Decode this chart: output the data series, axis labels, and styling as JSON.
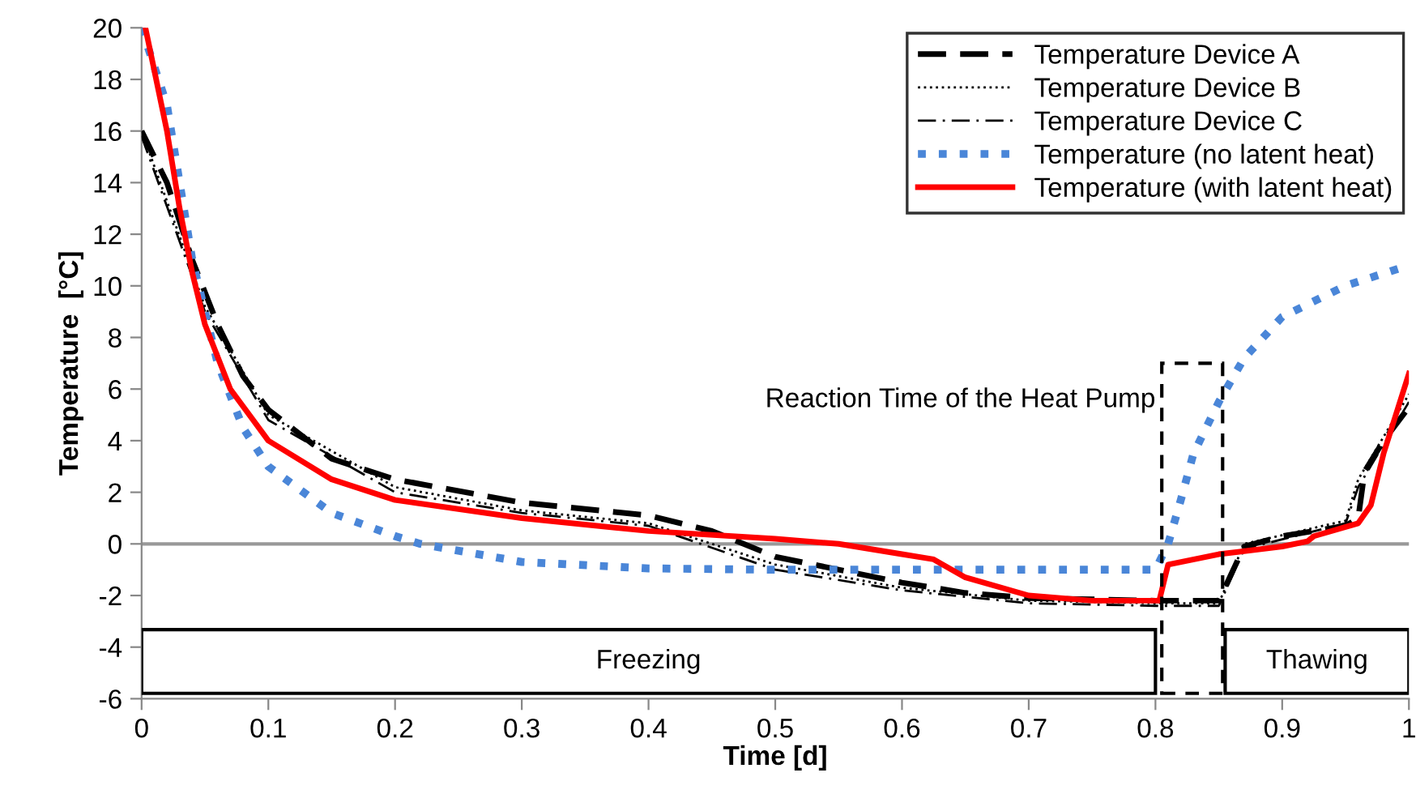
{
  "chart_data": {
    "type": "line",
    "xlabel": "Time [d]",
    "ylabel": "Temperature  [°C]",
    "xlim": [
      0,
      1
    ],
    "ylim": [
      -6,
      20
    ],
    "xticks": [
      0,
      0.1,
      0.2,
      0.3,
      0.4,
      0.5,
      0.6,
      0.7,
      0.8,
      0.9,
      1
    ],
    "yticks": [
      -6,
      -4,
      -2,
      0,
      2,
      4,
      6,
      8,
      10,
      12,
      14,
      16,
      18,
      20
    ],
    "grid": false,
    "legend": "top right",
    "series": [
      {
        "name": "Temperature Device A",
        "color": "#000000",
        "line_style": "dashed",
        "x": [
          0,
          0.02,
          0.04,
          0.06,
          0.08,
          0.1,
          0.15,
          0.2,
          0.3,
          0.4,
          0.45,
          0.5,
          0.55,
          0.6,
          0.65,
          0.7,
          0.8,
          0.85,
          0.87,
          0.9,
          0.95,
          0.96,
          0.965,
          0.98,
          1.0
        ],
        "values": [
          16,
          14,
          11,
          8.5,
          6.5,
          5.2,
          3.3,
          2.5,
          1.6,
          1.1,
          0.5,
          -0.5,
          -1.0,
          -1.5,
          -1.9,
          -2.1,
          -2.2,
          -2.2,
          -0.1,
          0.3,
          0.7,
          1.0,
          2.8,
          4.0,
          5.3
        ]
      },
      {
        "name": "Temperature Device B",
        "color": "#000000",
        "line_style": "dotted",
        "x": [
          0,
          0.05,
          0.1,
          0.2,
          0.3,
          0.4,
          0.5,
          0.6,
          0.7,
          0.8,
          0.85,
          0.87,
          0.95,
          0.96,
          1.0
        ],
        "values": [
          16,
          9.2,
          5,
          2.2,
          1.3,
          0.8,
          -0.8,
          -1.7,
          -2.2,
          -2.3,
          -2.3,
          0,
          0.9,
          2.5,
          5.8
        ]
      },
      {
        "name": "Temperature Device C",
        "color": "#000000",
        "line_style": "dashdot",
        "x": [
          0,
          0.05,
          0.1,
          0.2,
          0.3,
          0.4,
          0.5,
          0.6,
          0.7,
          0.8,
          0.85,
          0.87,
          0.95,
          0.96,
          1.0
        ],
        "values": [
          15.8,
          9,
          4.8,
          2.0,
          1.2,
          0.7,
          -1.0,
          -1.8,
          -2.3,
          -2.4,
          -2.4,
          -0.2,
          0.8,
          2.2,
          5.5
        ]
      },
      {
        "name": "Temperature (no latent heat)",
        "color": "#4a86d8",
        "line_style": "dotted",
        "x": [
          0,
          0.02,
          0.04,
          0.06,
          0.08,
          0.1,
          0.15,
          0.2,
          0.22,
          0.3,
          0.4,
          0.5,
          0.6,
          0.7,
          0.8,
          0.81,
          0.82,
          0.83,
          0.85,
          0.87,
          0.9,
          0.95,
          1.0
        ],
        "values": [
          20,
          17,
          11,
          7,
          4.5,
          3,
          1.2,
          0.3,
          0,
          -0.7,
          -0.95,
          -1.0,
          -1.0,
          -1.0,
          -1.0,
          0,
          1.7,
          3.5,
          5.5,
          7.2,
          8.8,
          10,
          10.8
        ]
      },
      {
        "name": "Temperature (with latent heat)",
        "color": "#ff0000",
        "line_style": "solid",
        "x": [
          0.003,
          0.02,
          0.03,
          0.04,
          0.05,
          0.07,
          0.1,
          0.15,
          0.2,
          0.3,
          0.4,
          0.5,
          0.55,
          0.6,
          0.625,
          0.65,
          0.7,
          0.75,
          0.8,
          0.803,
          0.81,
          0.85,
          0.9,
          0.92,
          0.925,
          0.96,
          0.97,
          0.98,
          1.0
        ],
        "values": [
          20,
          16,
          13,
          10.5,
          8.5,
          6,
          4,
          2.5,
          1.7,
          1.0,
          0.5,
          0.2,
          0.0,
          -0.4,
          -0.6,
          -1.3,
          -2.0,
          -2.2,
          -2.2,
          -2.2,
          -0.8,
          -0.4,
          -0.1,
          0.1,
          0.3,
          0.8,
          1.5,
          3.5,
          6.6
        ]
      }
    ],
    "ref_lines": [
      {
        "axis": "y",
        "value": 0,
        "color": "#999999"
      }
    ],
    "annotations": [
      "Freezing",
      "Reaction Time of the Heat Pump",
      "Thawing"
    ]
  }
}
